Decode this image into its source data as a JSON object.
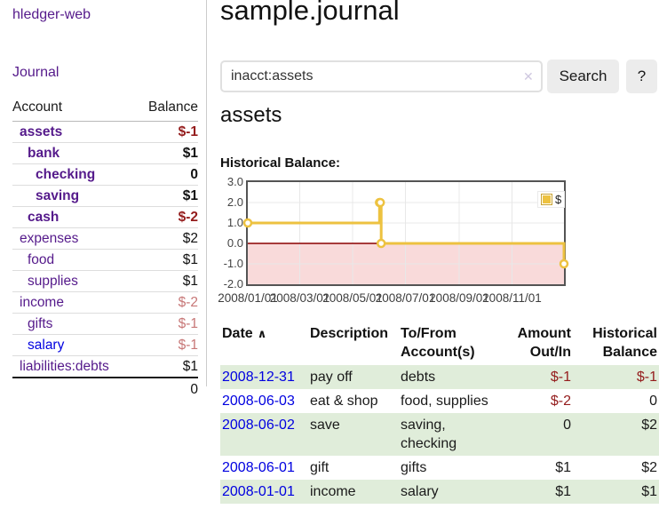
{
  "colors": {
    "purple": "#551a8b",
    "blue": "#0000e0",
    "neg_strong": "#941c1c",
    "neg_soft": "#c77777",
    "row_green": "#e0edda",
    "series_yellow": "#edc240",
    "button_bg": "#ececec",
    "divider": "#cccccc",
    "chart_border": "#545454",
    "grid": "#e8e8e8",
    "clear": "#cfc8e0"
  },
  "sidebar": {
    "app_title": "hledger-web",
    "nav": {
      "journal": "Journal"
    },
    "accounts_table": {
      "headers": {
        "account": "Account",
        "balance": "Balance"
      },
      "rows": [
        {
          "name": "assets",
          "balance": "$-1",
          "depth": 0,
          "bold": true
        },
        {
          "name": "bank",
          "balance": "$1",
          "depth": 1,
          "bold": true
        },
        {
          "name": "checking",
          "balance": "0",
          "depth": 2,
          "bold": true
        },
        {
          "name": "saving",
          "balance": "$1",
          "depth": 2,
          "bold": true
        },
        {
          "name": "cash",
          "balance": "$-2",
          "depth": 1,
          "bold": true
        },
        {
          "name": "expenses",
          "balance": "$2",
          "depth": 0,
          "bold": false
        },
        {
          "name": "food",
          "balance": "$1",
          "depth": 1,
          "bold": false
        },
        {
          "name": "supplies",
          "balance": "$1",
          "depth": 1,
          "bold": false
        },
        {
          "name": "income",
          "balance": "$-2",
          "depth": 0,
          "bold": false
        },
        {
          "name": "gifts",
          "balance": "$-1",
          "depth": 1,
          "bold": false
        },
        {
          "name": "salary",
          "balance": "$-1",
          "depth": 1,
          "bold": false
        },
        {
          "name": "liabilities:debts",
          "balance": "$1",
          "depth": 0,
          "bold": false
        }
      ],
      "total": "0"
    }
  },
  "main": {
    "title": "sample.journal",
    "search": {
      "value": "inacct:assets",
      "clear_icon": "✕",
      "button": "Search",
      "help_button": "?"
    },
    "account_heading": "assets",
    "chart_label": "Historical Balance:",
    "table": {
      "sort_icon": "∧",
      "headers": {
        "date": "Date",
        "description": "Description",
        "accounts": "To/From Account(s)",
        "amount": "Amount Out/In",
        "balance": "Historical Balance"
      },
      "rows": [
        {
          "date": "2008-12-31",
          "description": "pay off",
          "accounts": "debts",
          "amount": "$-1",
          "balance": "$-1"
        },
        {
          "date": "2008-06-03",
          "description": "eat & shop",
          "accounts": "food, supplies",
          "amount": "$-2",
          "balance": "0"
        },
        {
          "date": "2008-06-02",
          "description": "save",
          "accounts": "saving, checking",
          "amount": "0",
          "balance": "$2"
        },
        {
          "date": "2008-06-01",
          "description": "gift",
          "accounts": "gifts",
          "amount": "$1",
          "balance": "$2"
        },
        {
          "date": "2008-01-01",
          "description": "income",
          "accounts": "salary",
          "amount": "$1",
          "balance": "$1"
        }
      ]
    }
  },
  "chart_data": {
    "type": "line",
    "step": true,
    "title": "Historical Balance",
    "series": [
      {
        "name": "$",
        "color": "#edc240",
        "points": [
          [
            "2008-01-01",
            1
          ],
          [
            "2008-06-01",
            2
          ],
          [
            "2008-06-02",
            2
          ],
          [
            "2008-06-03",
            0
          ],
          [
            "2008-12-31",
            -1
          ]
        ]
      }
    ],
    "xlim": [
      "2008-01-01",
      "2008-12-31"
    ],
    "ylim": [
      -2,
      3
    ],
    "yticks": [
      {
        "value": 3,
        "label": "3.0"
      },
      {
        "value": 2,
        "label": "2.0"
      },
      {
        "value": 1,
        "label": "1.0"
      },
      {
        "value": 0,
        "label": "0.0"
      },
      {
        "value": -1,
        "label": "-1.0"
      },
      {
        "value": -2,
        "label": "-2.0"
      }
    ],
    "xticks": [
      {
        "date": "2008-01-01",
        "label": "2008/01/01"
      },
      {
        "date": "2008-03-01",
        "label": "2008/03/01"
      },
      {
        "date": "2008-05-01",
        "label": "2008/05/01"
      },
      {
        "date": "2008-07-01",
        "label": "2008/07/01"
      },
      {
        "date": "2008-09-01",
        "label": "2008/09/01"
      },
      {
        "date": "2008-11-01",
        "label": "2008/11/01"
      }
    ],
    "grid": true,
    "legend_position": "top-right",
    "negative_region_color": "#f9dada",
    "zero_line_color": "#8b0000"
  }
}
